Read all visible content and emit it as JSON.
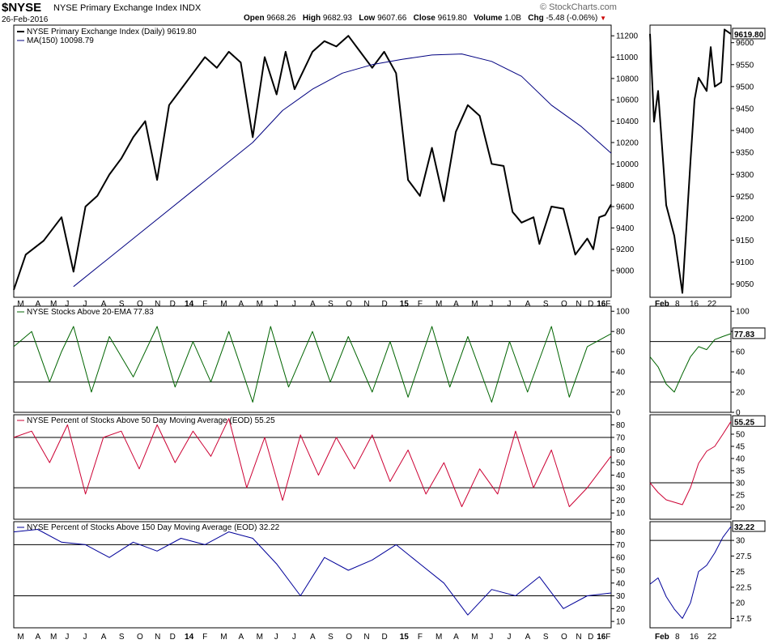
{
  "header": {
    "symbol": "$NYSE",
    "name": "NYSE Primary Exchange Index",
    "exchange": "INDX",
    "date": "26-Feb-2016",
    "credit": "© StockCharts.com",
    "quote": {
      "open_label": "Open",
      "open": "9668.26",
      "high_label": "High",
      "high": "9682.93",
      "low_label": "Low",
      "low": "9607.66",
      "close_label": "Close",
      "close": "9619.80",
      "volume_label": "Volume",
      "volume": "1.0B",
      "chg_label": "Chg",
      "chg": "-5.48 (-0.06%)"
    }
  },
  "colors": {
    "price": "#000000",
    "ma": "#000080",
    "ema20": "#006400",
    "ma50": "#cc0033",
    "ma150": "#000099",
    "refline": "#000000"
  },
  "chart_data": [
    {
      "type": "line",
      "name": "price",
      "legend": [
        "NYSE Primary Exchange Index (Daily) 9619.80",
        "MA(150) 10098.79"
      ],
      "ylim": [
        8750,
        11300
      ],
      "yticks": [
        9000,
        9200,
        9400,
        9600,
        9800,
        10000,
        10200,
        10400,
        10600,
        10800,
        11000,
        11200
      ],
      "last_label": "9619.80",
      "series": [
        {
          "name": "NYSE Primary Exchange Index (Daily)",
          "x": [
            0,
            0.02,
            0.05,
            0.08,
            0.1,
            0.12,
            0.14,
            0.16,
            0.18,
            0.2,
            0.22,
            0.24,
            0.26,
            0.28,
            0.3,
            0.32,
            0.34,
            0.36,
            0.38,
            0.4,
            0.42,
            0.44,
            0.455,
            0.47,
            0.5,
            0.52,
            0.54,
            0.56,
            0.58,
            0.6,
            0.62,
            0.64,
            0.66,
            0.68,
            0.7,
            0.72,
            0.74,
            0.76,
            0.78,
            0.8,
            0.82,
            0.835,
            0.85,
            0.87,
            0.88,
            0.9,
            0.92,
            0.94,
            0.96,
            0.97,
            0.98,
            0.99,
            1.0
          ],
          "values": [
            8820,
            9150,
            9280,
            9500,
            8990,
            9600,
            9700,
            9900,
            10050,
            10250,
            10400,
            9850,
            10550,
            10700,
            10850,
            11000,
            10900,
            11050,
            10950,
            10250,
            11000,
            10650,
            11050,
            10700,
            11050,
            11150,
            11100,
            11200,
            11050,
            10900,
            11050,
            10850,
            9850,
            9700,
            10150,
            9650,
            10300,
            10550,
            10450,
            10000,
            9980,
            9550,
            9450,
            9500,
            9250,
            9600,
            9580,
            9150,
            9300,
            9200,
            9500,
            9520,
            9619.8
          ]
        },
        {
          "name": "MA(150)",
          "x": [
            0.1,
            0.2,
            0.3,
            0.4,
            0.45,
            0.5,
            0.55,
            0.6,
            0.65,
            0.7,
            0.75,
            0.8,
            0.85,
            0.9,
            0.95,
            1.0
          ],
          "values": [
            8850,
            9300,
            9750,
            10200,
            10500,
            10700,
            10850,
            10930,
            10980,
            11020,
            11030,
            10960,
            10820,
            10550,
            10350,
            10100
          ]
        }
      ]
    },
    {
      "type": "line",
      "name": "ema20",
      "legend": "NYSE Stocks Above 20-EMA 77.83",
      "ylim": [
        0,
        105
      ],
      "yticks": [
        0,
        20,
        40,
        60,
        80,
        100
      ],
      "reflines": [
        30,
        70
      ],
      "last_label": "77.83",
      "series": [
        {
          "name": "NYSE Stocks Above 20-EMA",
          "x": [
            0,
            0.03,
            0.06,
            0.08,
            0.1,
            0.13,
            0.16,
            0.2,
            0.24,
            0.27,
            0.3,
            0.33,
            0.36,
            0.4,
            0.43,
            0.46,
            0.5,
            0.53,
            0.56,
            0.6,
            0.63,
            0.66,
            0.7,
            0.73,
            0.76,
            0.8,
            0.83,
            0.86,
            0.9,
            0.93,
            0.96,
            1.0
          ],
          "values": [
            65,
            80,
            30,
            60,
            85,
            20,
            75,
            35,
            85,
            25,
            70,
            30,
            80,
            10,
            85,
            25,
            80,
            30,
            75,
            20,
            70,
            15,
            85,
            25,
            75,
            10,
            70,
            20,
            85,
            15,
            65,
            77.83
          ]
        }
      ]
    },
    {
      "type": "line",
      "name": "ma50",
      "legend": "NYSE Percent of Stocks Above 50 Day Moving Average (EOD) 55.25",
      "ylim": [
        5,
        88
      ],
      "yticks": [
        10,
        20,
        30,
        40,
        50,
        60,
        70,
        80
      ],
      "reflines": [
        30,
        70
      ],
      "last_label": "55.25",
      "series": [
        {
          "name": "NYSE Percent of Stocks Above 50 Day Moving Average (EOD)",
          "x": [
            0,
            0.03,
            0.06,
            0.09,
            0.12,
            0.15,
            0.18,
            0.21,
            0.24,
            0.27,
            0.3,
            0.33,
            0.36,
            0.39,
            0.42,
            0.45,
            0.48,
            0.51,
            0.54,
            0.57,
            0.6,
            0.63,
            0.66,
            0.69,
            0.72,
            0.75,
            0.78,
            0.81,
            0.84,
            0.87,
            0.9,
            0.93,
            0.96,
            1.0
          ],
          "values": [
            70,
            75,
            50,
            80,
            25,
            70,
            75,
            45,
            80,
            50,
            75,
            55,
            85,
            30,
            70,
            20,
            72,
            40,
            70,
            45,
            72,
            35,
            60,
            25,
            50,
            15,
            45,
            25,
            75,
            30,
            60,
            15,
            30,
            55.25
          ]
        }
      ]
    },
    {
      "type": "line",
      "name": "ma150",
      "legend": "NYSE Percent of Stocks Above 150 Day Moving Average (EOD) 32.22",
      "ylim": [
        5,
        88
      ],
      "yticks": [
        10,
        20,
        30,
        40,
        50,
        60,
        70,
        80
      ],
      "reflines": [
        30,
        70
      ],
      "last_label": "32.22",
      "series": [
        {
          "name": "NYSE Percent of Stocks Above 150 Day Moving Average (EOD)",
          "x": [
            0,
            0.04,
            0.08,
            0.12,
            0.16,
            0.2,
            0.24,
            0.28,
            0.32,
            0.36,
            0.4,
            0.44,
            0.48,
            0.52,
            0.56,
            0.6,
            0.64,
            0.68,
            0.72,
            0.76,
            0.8,
            0.84,
            0.88,
            0.92,
            0.96,
            1.0
          ],
          "values": [
            80,
            82,
            72,
            70,
            60,
            72,
            65,
            75,
            70,
            80,
            75,
            55,
            30,
            60,
            50,
            58,
            70,
            55,
            40,
            15,
            35,
            30,
            45,
            20,
            30,
            32.22
          ]
        }
      ]
    },
    {
      "type": "line",
      "name": "price_zoom",
      "ylim": [
        9020,
        9640
      ],
      "yticks": [
        9050,
        9100,
        9150,
        9200,
        9250,
        9300,
        9350,
        9400,
        9450,
        9500,
        9550,
        9600
      ],
      "series": [
        {
          "name": "NYSE Primary Exchange Index (Daily)",
          "x": [
            0,
            0.05,
            0.1,
            0.2,
            0.3,
            0.4,
            0.5,
            0.55,
            0.6,
            0.7,
            0.75,
            0.8,
            0.88,
            0.92,
            1.0
          ],
          "values": [
            9620,
            9420,
            9490,
            9230,
            9160,
            9030,
            9330,
            9470,
            9520,
            9490,
            9590,
            9500,
            9510,
            9630,
            9619.8
          ]
        }
      ]
    },
    {
      "type": "line",
      "name": "ema20_zoom",
      "ylim": [
        0,
        105
      ],
      "yticks": [
        0,
        20,
        40,
        60,
        80,
        100
      ],
      "reflines": [
        30,
        70
      ],
      "series": [
        {
          "name": "NYSE Stocks Above 20-EMA",
          "x": [
            0,
            0.1,
            0.2,
            0.3,
            0.4,
            0.5,
            0.6,
            0.7,
            0.8,
            0.9,
            1.0
          ],
          "values": [
            55,
            45,
            28,
            20,
            38,
            55,
            65,
            62,
            72,
            75,
            77.83
          ]
        }
      ]
    },
    {
      "type": "line",
      "name": "ma50_zoom",
      "ylim": [
        15,
        58
      ],
      "yticks": [
        20,
        25,
        30,
        35,
        40,
        45,
        50
      ],
      "reflines": [
        30
      ],
      "series": [
        {
          "name": "NYSE Percent of Stocks Above 50 Day Moving Average (EOD)",
          "x": [
            0,
            0.1,
            0.2,
            0.3,
            0.4,
            0.5,
            0.6,
            0.7,
            0.8,
            0.9,
            1.0
          ],
          "values": [
            30,
            26,
            23,
            22,
            21,
            28,
            38,
            43,
            45,
            50,
            55.25
          ]
        }
      ]
    },
    {
      "type": "line",
      "name": "ma150_zoom",
      "ylim": [
        16,
        33
      ],
      "yticks": [
        17.5,
        20.0,
        22.5,
        25.0,
        27.5,
        30.0
      ],
      "reflines": [
        30.0
      ],
      "series": [
        {
          "name": "NYSE Percent of Stocks Above 150 Day Moving Average (EOD)",
          "x": [
            0,
            0.1,
            0.2,
            0.3,
            0.4,
            0.5,
            0.6,
            0.7,
            0.8,
            0.9,
            1.0
          ],
          "values": [
            23,
            24,
            21,
            19,
            17.5,
            20,
            25,
            26,
            28,
            30.5,
            32.22
          ]
        }
      ]
    }
  ],
  "x_axis": {
    "main": [
      {
        "label": "M",
        "pos": 0.01
      },
      {
        "label": "A",
        "pos": 0.04
      },
      {
        "label": "M",
        "pos": 0.065
      },
      {
        "label": "J",
        "pos": 0.09
      },
      {
        "label": "J",
        "pos": 0.12
      },
      {
        "label": "A",
        "pos": 0.15
      },
      {
        "label": "S",
        "pos": 0.18
      },
      {
        "label": "O",
        "pos": 0.21
      },
      {
        "label": "N",
        "pos": 0.24
      },
      {
        "label": "D",
        "pos": 0.265
      },
      {
        "label": "14",
        "pos": 0.29
      },
      {
        "label": "F",
        "pos": 0.32
      },
      {
        "label": "M",
        "pos": 0.35
      },
      {
        "label": "A",
        "pos": 0.38
      },
      {
        "label": "M",
        "pos": 0.41
      },
      {
        "label": "J",
        "pos": 0.44
      },
      {
        "label": "J",
        "pos": 0.47
      },
      {
        "label": "A",
        "pos": 0.5
      },
      {
        "label": "S",
        "pos": 0.53
      },
      {
        "label": "O",
        "pos": 0.56
      },
      {
        "label": "N",
        "pos": 0.59
      },
      {
        "label": "D",
        "pos": 0.62
      },
      {
        "label": "15",
        "pos": 0.65
      },
      {
        "label": "F",
        "pos": 0.68
      },
      {
        "label": "M",
        "pos": 0.71
      },
      {
        "label": "A",
        "pos": 0.74
      },
      {
        "label": "M",
        "pos": 0.77
      },
      {
        "label": "J",
        "pos": 0.8
      },
      {
        "label": "J",
        "pos": 0.83
      },
      {
        "label": "A",
        "pos": 0.86
      },
      {
        "label": "S",
        "pos": 0.89
      },
      {
        "label": "O",
        "pos": 0.92
      },
      {
        "label": "N",
        "pos": 0.945
      },
      {
        "label": "D",
        "pos": 0.965
      },
      {
        "label": "16",
        "pos": 0.98
      },
      {
        "label": "F",
        "pos": 0.995
      }
    ],
    "zoom": [
      {
        "label": "Feb",
        "pos": 0.12
      },
      {
        "label": "8",
        "pos": 0.37
      },
      {
        "label": "16",
        "pos": 0.55
      },
      {
        "label": "22",
        "pos": 0.77
      }
    ]
  }
}
